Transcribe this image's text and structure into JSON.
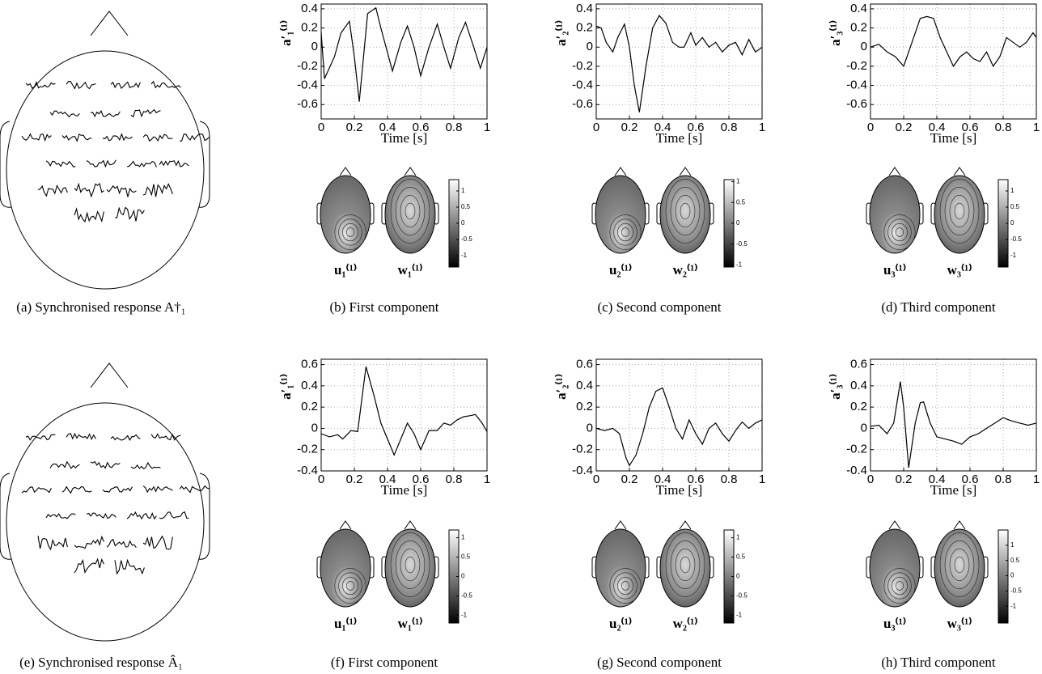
{
  "chart_data": [
    {
      "type": "line",
      "ylabel": "a′₁⁽¹⁾",
      "xlabel": "Time [s]",
      "color": "#000000",
      "grid": true,
      "x": [
        0,
        0.02,
        0.08,
        0.12,
        0.17,
        0.2,
        0.23,
        0.28,
        0.33,
        0.36,
        0.43,
        0.48,
        0.52,
        0.56,
        0.6,
        0.65,
        0.7,
        0.74,
        0.78,
        0.83,
        0.87,
        0.92,
        0.96,
        1
      ],
      "values": [
        0.15,
        -0.33,
        -0.1,
        0.15,
        0.27,
        -0.1,
        -0.57,
        0.35,
        0.41,
        0.2,
        -0.25,
        0.05,
        0.22,
        0,
        -0.3,
        0,
        0.24,
        0,
        -0.22,
        0.1,
        0.26,
        0,
        -0.22,
        0
      ],
      "xlim": [
        0,
        1
      ],
      "xticks": [
        0,
        0.2,
        0.4,
        0.6,
        0.8,
        1
      ],
      "ylim": [
        -0.75,
        0.45
      ],
      "yticks": [
        -0.6,
        -0.4,
        -0.2,
        0,
        0.2,
        0.4
      ],
      "map_labels": [
        "u₁⁽¹⁾",
        "w₁⁽¹⁾"
      ],
      "clim": [
        -1.35,
        1.35
      ],
      "cticks": [
        -1,
        -0.5,
        0,
        0.5,
        1
      ]
    },
    {
      "type": "line",
      "ylabel": "a′₂⁽¹⁾",
      "xlabel": "Time [s]",
      "color": "#000000",
      "grid": true,
      "x": [
        0,
        0.03,
        0.06,
        0.1,
        0.13,
        0.17,
        0.2,
        0.23,
        0.26,
        0.3,
        0.34,
        0.38,
        0.42,
        0.46,
        0.5,
        0.53,
        0.57,
        0.6,
        0.64,
        0.68,
        0.72,
        0.76,
        0.8,
        0.84,
        0.88,
        0.92,
        0.96,
        1
      ],
      "values": [
        0.22,
        0.2,
        0.05,
        -0.05,
        0.1,
        0.24,
        0,
        -0.4,
        -0.68,
        -0.2,
        0.2,
        0.33,
        0.25,
        0.05,
        0,
        0,
        0.15,
        0.02,
        0.1,
        0,
        0.05,
        -0.05,
        0.02,
        0.05,
        -0.08,
        0.08,
        -0.05,
        0
      ],
      "xlim": [
        0,
        1
      ],
      "xticks": [
        0,
        0.2,
        0.4,
        0.6,
        0.8,
        1
      ],
      "ylim": [
        -0.75,
        0.45
      ],
      "yticks": [
        -0.6,
        -0.4,
        -0.2,
        0,
        0.2,
        0.4
      ],
      "map_labels": [
        "u₂⁽¹⁾",
        "w₂⁽¹⁾"
      ],
      "clim": [
        -1.05,
        1.05
      ],
      "cticks": [
        -1,
        -0.5,
        0,
        0.5,
        1
      ]
    },
    {
      "type": "line",
      "ylabel": "a′₃⁽¹⁾",
      "xlabel": "Time [s]",
      "color": "#000000",
      "grid": true,
      "x": [
        0,
        0.05,
        0.1,
        0.15,
        0.2,
        0.25,
        0.3,
        0.34,
        0.38,
        0.42,
        0.46,
        0.5,
        0.54,
        0.58,
        0.62,
        0.66,
        0.7,
        0.74,
        0.78,
        0.82,
        0.86,
        0.9,
        0.94,
        0.98,
        1
      ],
      "values": [
        0,
        0.03,
        -0.05,
        -0.1,
        -0.2,
        0.05,
        0.3,
        0.32,
        0.3,
        0.1,
        -0.05,
        -0.2,
        -0.1,
        -0.05,
        -0.12,
        -0.15,
        -0.05,
        -0.2,
        -0.1,
        0.1,
        0.05,
        0,
        0.05,
        0.15,
        0.1
      ],
      "xlim": [
        0,
        1
      ],
      "xticks": [
        0,
        0.2,
        0.4,
        0.6,
        0.8,
        1
      ],
      "ylim": [
        -0.75,
        0.45
      ],
      "yticks": [
        -0.6,
        -0.4,
        -0.2,
        0,
        0.2,
        0.4
      ],
      "map_labels": [
        "u₃⁽¹⁾",
        "w₃⁽¹⁾"
      ],
      "clim": [
        -1.35,
        1.35
      ],
      "cticks": [
        -1,
        -0.5,
        0,
        0.5,
        1
      ]
    },
    {
      "type": "line",
      "ylabel": "a′₁⁽¹⁾",
      "xlabel": "Time [s]",
      "color": "#000000",
      "grid": true,
      "x": [
        0,
        0.05,
        0.1,
        0.13,
        0.18,
        0.22,
        0.27,
        0.32,
        0.36,
        0.4,
        0.44,
        0.48,
        0.52,
        0.56,
        0.6,
        0.65,
        0.7,
        0.74,
        0.78,
        0.82,
        0.86,
        0.9,
        0.93,
        0.97,
        1
      ],
      "values": [
        -0.05,
        -0.08,
        -0.06,
        -0.1,
        -0.02,
        -0.03,
        0.58,
        0.3,
        0.05,
        -0.1,
        -0.25,
        -0.1,
        0.05,
        -0.05,
        -0.2,
        -0.02,
        -0.02,
        0.05,
        0.03,
        0.08,
        0.11,
        0.12,
        0.13,
        0.05,
        -0.03
      ],
      "xlim": [
        0,
        1
      ],
      "xticks": [
        0,
        0.2,
        0.4,
        0.6,
        0.8,
        1
      ],
      "ylim": [
        -0.4,
        0.65
      ],
      "yticks": [
        -0.4,
        -0.2,
        0,
        0.2,
        0.4,
        0.6
      ],
      "map_labels": [
        "u₁⁽¹⁾",
        "w₁⁽¹⁾"
      ],
      "clim": [
        -1.2,
        1.2
      ],
      "cticks": [
        -1,
        -0.5,
        0,
        0.5,
        1
      ]
    },
    {
      "type": "line",
      "ylabel": "a′₂⁽¹⁾",
      "xlabel": "Time [s]",
      "color": "#000000",
      "grid": true,
      "x": [
        0,
        0.05,
        0.1,
        0.14,
        0.18,
        0.2,
        0.24,
        0.28,
        0.32,
        0.36,
        0.4,
        0.44,
        0.48,
        0.52,
        0.56,
        0.6,
        0.64,
        0.68,
        0.72,
        0.76,
        0.8,
        0.84,
        0.88,
        0.92,
        0.96,
        1
      ],
      "values": [
        0,
        -0.02,
        0,
        -0.05,
        -0.28,
        -0.35,
        -0.25,
        -0.05,
        0.2,
        0.35,
        0.38,
        0.2,
        0,
        -0.1,
        0.08,
        -0.05,
        -0.15,
        0,
        0.05,
        -0.05,
        -0.12,
        -0.02,
        0.06,
        0,
        0.05,
        0.08
      ],
      "xlim": [
        0,
        1
      ],
      "xticks": [
        0,
        0.2,
        0.4,
        0.6,
        0.8,
        1
      ],
      "ylim": [
        -0.4,
        0.65
      ],
      "yticks": [
        -0.4,
        -0.2,
        0,
        0.2,
        0.4,
        0.6
      ],
      "map_labels": [
        "u₂⁽¹⁾",
        "w₂⁽¹⁾"
      ],
      "clim": [
        -1.2,
        1.2
      ],
      "cticks": [
        -1,
        -0.5,
        0,
        0.5,
        1
      ]
    },
    {
      "type": "line",
      "ylabel": "a′₃⁽¹⁾",
      "xlabel": "Time [s]",
      "color": "#000000",
      "grid": true,
      "x": [
        0,
        0.05,
        0.1,
        0.14,
        0.18,
        0.2,
        0.23,
        0.27,
        0.3,
        0.32,
        0.36,
        0.4,
        0.45,
        0.5,
        0.55,
        0.6,
        0.65,
        0.7,
        0.75,
        0.8,
        0.85,
        0.9,
        0.95,
        1
      ],
      "values": [
        0.02,
        0.03,
        -0.05,
        0.05,
        0.44,
        0.2,
        -0.37,
        0.05,
        0.24,
        0.25,
        0.05,
        -0.08,
        -0.1,
        -0.12,
        -0.15,
        -0.08,
        -0.05,
        0,
        0.05,
        0.1,
        0.07,
        0.05,
        0.03,
        0.05
      ],
      "xlim": [
        0,
        1
      ],
      "xticks": [
        0,
        0.2,
        0.4,
        0.6,
        0.8,
        1
      ],
      "ylim": [
        -0.4,
        0.65
      ],
      "yticks": [
        -0.4,
        -0.2,
        0,
        0.2,
        0.4,
        0.6
      ],
      "map_labels": [
        "u₃⁽¹⁾",
        "w₃⁽¹⁾"
      ],
      "clim": [
        -1.55,
        1.5
      ],
      "cticks": [
        -1,
        -0.5,
        0,
        0.5,
        1
      ]
    }
  ],
  "captions": [
    "(a)  Synchronised response A†₁",
    "(b)  First component",
    "(c)  Second component",
    "(d)  Third component",
    "(e)  Synchronised response Â₁",
    "(f)  First component",
    "(g)  Second component",
    "(h)  Third component"
  ]
}
